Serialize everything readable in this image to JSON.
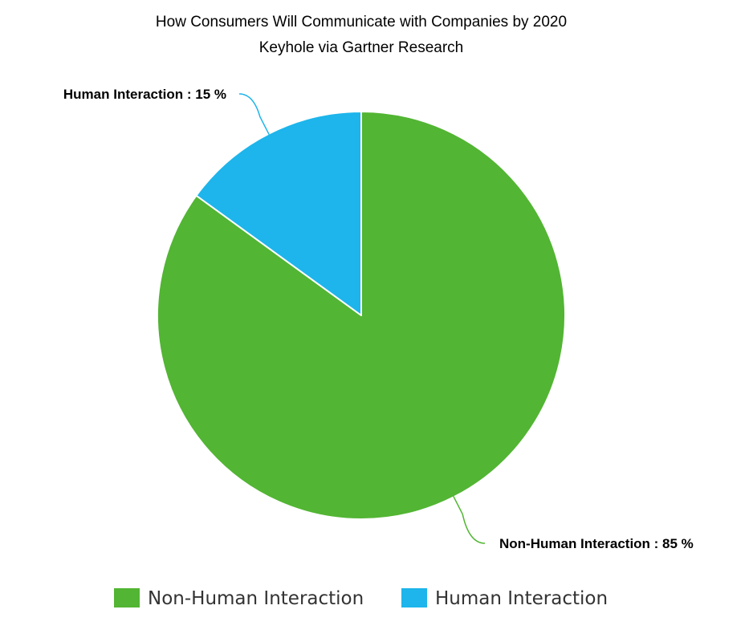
{
  "chart_data": {
    "type": "pie",
    "title": "How Consumers Will Communicate with Companies by 2020",
    "subtitle": "Keyhole via Gartner Research",
    "slices": [
      {
        "name": "Non-Human Interaction",
        "value": 85,
        "color": "#52b533",
        "label": "Non-Human Interaction : 85 %"
      },
      {
        "name": "Human Interaction",
        "value": 15,
        "color": "#1db5eb",
        "label": "Human Interaction : 15 %"
      }
    ],
    "legend": {
      "placement": "bottom",
      "items": [
        "Non-Human Interaction",
        "Human Interaction"
      ]
    }
  }
}
